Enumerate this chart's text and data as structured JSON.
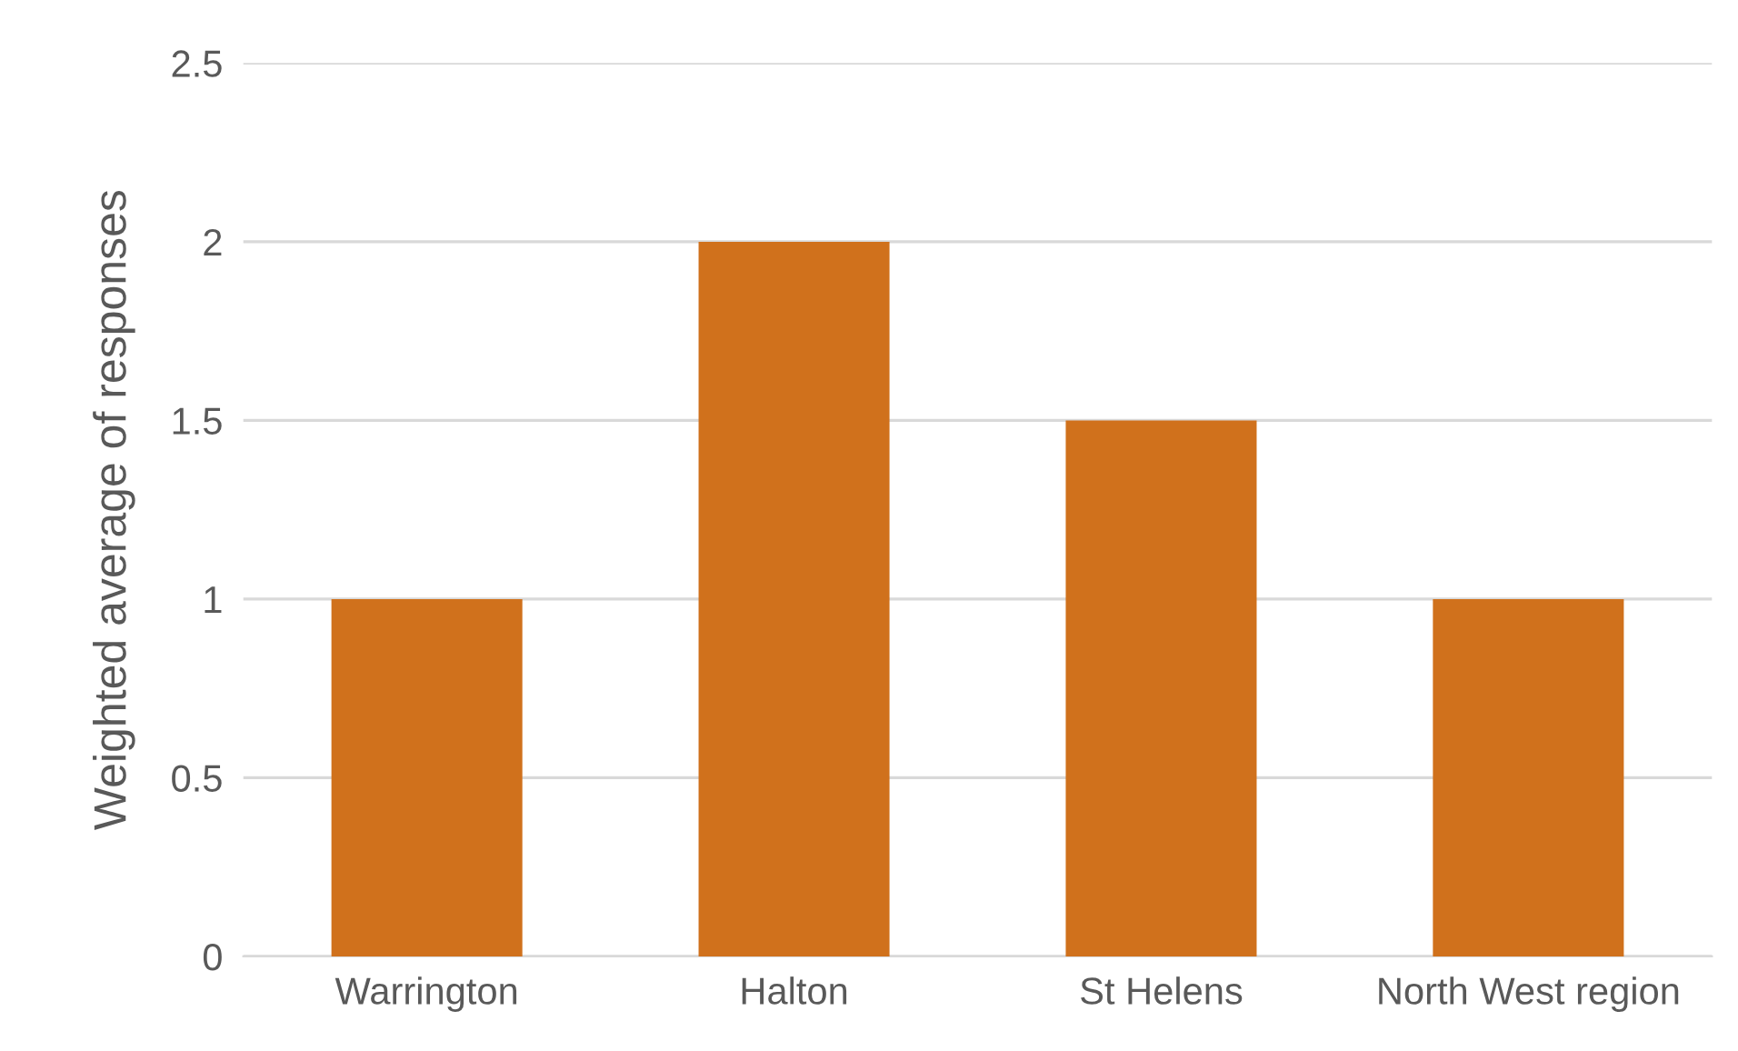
{
  "chart_data": {
    "type": "bar",
    "ylabel": "Weighted average of responses",
    "categories": [
      "Warrington",
      "Halton",
      "St Helens",
      "North West region"
    ],
    "values": [
      1,
      2,
      1.5,
      1
    ],
    "color": "#d0711c",
    "ylim": [
      0,
      2.5
    ],
    "yticks": [
      0,
      0.5,
      1,
      1.5,
      2,
      2.5
    ],
    "grid": "y"
  }
}
